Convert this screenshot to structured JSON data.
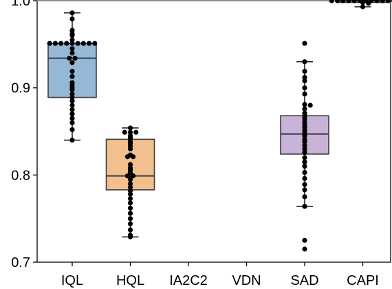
{
  "chart_data": {
    "type": "box",
    "title": "",
    "xlabel": "",
    "ylabel": "",
    "ylim": [
      0.7,
      1.0
    ],
    "yticks": [
      0.7,
      0.8,
      0.9,
      1.0
    ],
    "ytick_labels": [
      "0.7",
      "0.8",
      "0.9",
      "1.0"
    ],
    "reference_line": 1.0,
    "categories": [
      "IQL",
      "HQL",
      "IA2C2",
      "VDN",
      "SAD",
      "CAPI"
    ],
    "boxes": [
      {
        "name": "IQL",
        "color": "#94b8d6",
        "q1": 0.889,
        "median": 0.934,
        "q3": 0.951,
        "whisker_low": 0.84,
        "whisker_high": 0.986,
        "points": [
          0.986,
          0.979,
          0.966,
          0.962,
          0.96,
          0.955,
          0.951,
          0.951,
          0.951,
          0.951,
          0.951,
          0.951,
          0.951,
          0.951,
          0.951,
          0.945,
          0.94,
          0.934,
          0.934,
          0.929,
          0.919,
          0.913,
          0.906,
          0.903,
          0.9,
          0.898,
          0.893,
          0.889,
          0.885,
          0.88,
          0.875,
          0.87,
          0.865,
          0.86,
          0.852,
          0.84
        ]
      },
      {
        "name": "HQL",
        "color": "#f2c08e",
        "q1": 0.783,
        "median": 0.799,
        "q3": 0.841,
        "whisker_low": 0.729,
        "whisker_high": 0.854,
        "points": [
          0.854,
          0.849,
          0.849,
          0.849,
          0.845,
          0.843,
          0.841,
          0.838,
          0.836,
          0.833,
          0.83,
          0.823,
          0.821,
          0.821,
          0.812,
          0.808,
          0.806,
          0.803,
          0.799,
          0.799,
          0.797,
          0.795,
          0.79,
          0.786,
          0.782,
          0.778,
          0.773,
          0.768,
          0.762,
          0.756,
          0.75,
          0.744,
          0.737,
          0.731,
          0.729
        ]
      },
      {
        "name": "IA2C2",
        "color": "#cccccc",
        "points": []
      },
      {
        "name": "VDN",
        "color": "#cccccc",
        "points": []
      },
      {
        "name": "SAD",
        "color": "#c9b3d9",
        "q1": 0.824,
        "median": 0.847,
        "q3": 0.868,
        "whisker_low": 0.764,
        "whisker_high": 0.93,
        "points": [
          0.951,
          0.93,
          0.919,
          0.912,
          0.908,
          0.9,
          0.893,
          0.881,
          0.88,
          0.876,
          0.871,
          0.868,
          0.865,
          0.861,
          0.858,
          0.855,
          0.852,
          0.85,
          0.847,
          0.845,
          0.841,
          0.838,
          0.834,
          0.83,
          0.826,
          0.82,
          0.815,
          0.81,
          0.803,
          0.796,
          0.789,
          0.783,
          0.775,
          0.764,
          0.725,
          0.715
        ]
      },
      {
        "name": "CAPI",
        "color": "#bbbbbb",
        "q1": 0.998,
        "median": 1.0,
        "q3": 1.0,
        "whisker_low": 0.993,
        "whisker_high": 1.0,
        "points": [
          1.0,
          1.0,
          1.0,
          1.0,
          1.0,
          1.0,
          1.0,
          1.0,
          1.0,
          1.0,
          1.0,
          1.0,
          0.998,
          0.997,
          0.993
        ]
      }
    ],
    "grid": false,
    "legend": "none"
  }
}
